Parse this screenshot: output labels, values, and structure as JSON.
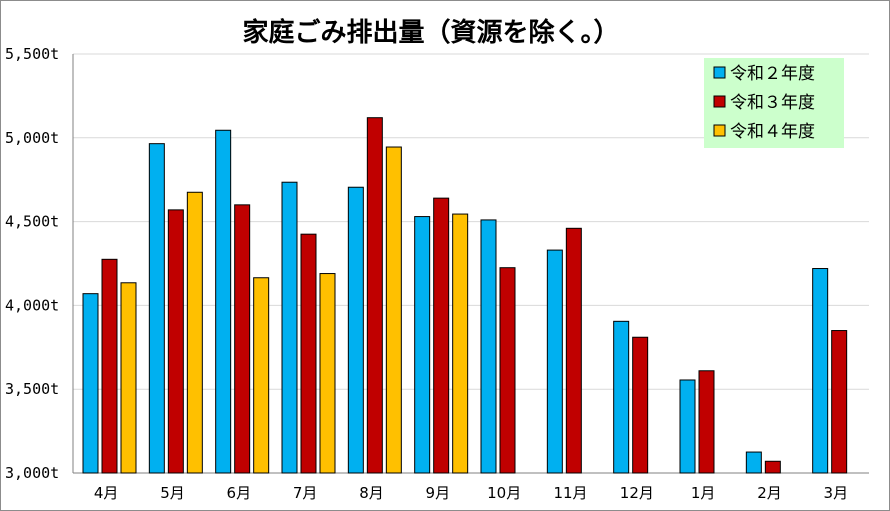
{
  "chart_data": {
    "type": "bar",
    "title": "家庭ごみ排出量（資源を除く。）",
    "categories": [
      "4月",
      "5月",
      "6月",
      "7月",
      "8月",
      "9月",
      "10月",
      "11月",
      "12月",
      "1月",
      "2月",
      "3月"
    ],
    "series": [
      {
        "name": "令和２年度",
        "color": "#00B0F0",
        "values": [
          4070,
          4965,
          5045,
          4735,
          4705,
          4530,
          4510,
          4330,
          3905,
          3555,
          3125,
          4220
        ]
      },
      {
        "name": "令和３年度",
        "color": "#C00000",
        "values": [
          4275,
          4570,
          4600,
          4425,
          5120,
          4640,
          4225,
          4460,
          3810,
          3610,
          3070,
          3850
        ]
      },
      {
        "name": "令和４年度",
        "color": "#FFC000",
        "values": [
          4135,
          4675,
          4165,
          4190,
          4945,
          4545,
          null,
          null,
          null,
          null,
          null,
          null
        ]
      }
    ],
    "yticks": [
      "3,000t",
      "3,500t",
      "4,000t",
      "4,500t",
      "5,000t",
      "5,500t"
    ],
    "ylim": [
      3000,
      5500
    ],
    "xlabel": "",
    "ylabel": "",
    "grid": "horizontal",
    "legend_position": "top-right",
    "legend_background": "#CCFFCC"
  }
}
